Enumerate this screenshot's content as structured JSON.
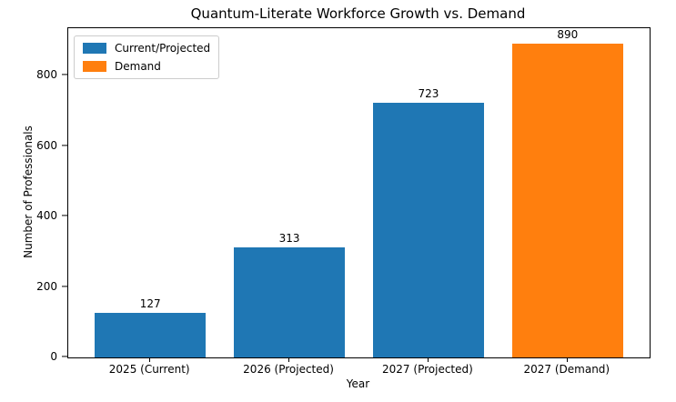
{
  "chart_data": {
    "type": "bar",
    "title": "Quantum-Literate Workforce Growth vs. Demand",
    "xlabel": "Year",
    "ylabel": "Number of Professionals",
    "categories": [
      "2025 (Current)",
      "2026 (Projected)",
      "2027 (Projected)",
      "2027 (Demand)"
    ],
    "values": [
      127,
      313,
      723,
      890
    ],
    "bar_series": [
      "Current/Projected",
      "Current/Projected",
      "Current/Projected",
      "Demand"
    ],
    "yticks": [
      0,
      200,
      400,
      600,
      800
    ],
    "ylim": [
      0,
      934.5
    ],
    "xlim": [
      -0.59,
      3.59
    ],
    "bar_width": 0.8,
    "grid": false,
    "background": "#ffffff",
    "legend": {
      "position": "upper-left",
      "entries": [
        {
          "label": "Current/Projected",
          "color": "#1f77b4"
        },
        {
          "label": "Demand",
          "color": "#ff7f0e"
        }
      ]
    }
  }
}
